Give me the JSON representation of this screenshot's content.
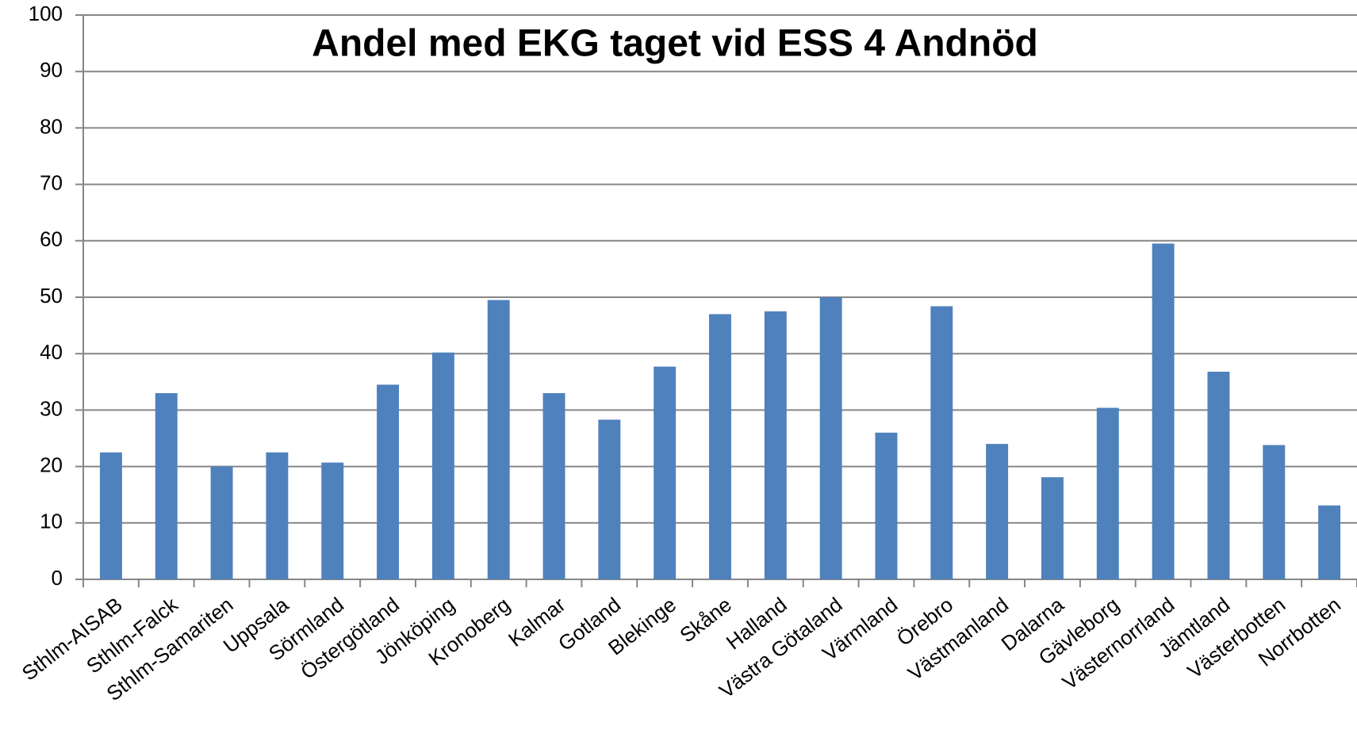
{
  "chart_data": {
    "type": "bar",
    "title": "Andel med EKG taget vid ESS 4 Andnöd",
    "categories": [
      "Sthlm-AISAB",
      "Sthlm-Falck",
      "Sthlm-Samariten",
      "Uppsala",
      "Sörmland",
      "Östergötland",
      "Jönköping",
      "Kronoberg",
      "Kalmar",
      "Gotland",
      "Blekinge",
      "Skåne",
      "Halland",
      "Västra Götaland",
      "Värmland",
      "Örebro",
      "Västmanland",
      "Dalarna",
      "Gävleborg",
      "Västernorrland",
      "Jämtland",
      "Västerbotten",
      "Norrbotten"
    ],
    "values": [
      22.5,
      33,
      20,
      22.5,
      20.7,
      34.5,
      40.2,
      49.5,
      33,
      28.3,
      37.7,
      47,
      47.5,
      50,
      26,
      48.4,
      24,
      18.1,
      30.4,
      59.5,
      36.8,
      23.8,
      13.1
    ],
    "color": "#4f81bd",
    "ylim": [
      0,
      100
    ],
    "yticks": [
      0,
      10,
      20,
      30,
      40,
      50,
      60,
      70,
      80,
      90,
      100
    ],
    "grid": true
  }
}
